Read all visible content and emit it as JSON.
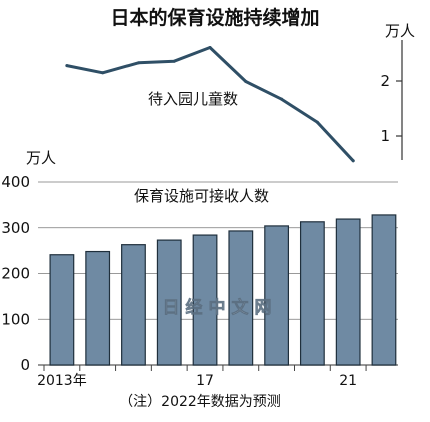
{
  "watermark": "日经中文网",
  "chart_data": [
    {
      "type": "line",
      "title": "日本的保育设施持续增加",
      "label": "待入园儿童数",
      "unit": "万人",
      "ylim": [
        0.6,
        2.6
      ],
      "yticks": [
        1,
        2
      ],
      "color": "#2f4f66",
      "x": [
        2013,
        2014,
        2015,
        2016,
        2017,
        2018,
        2019,
        2020,
        2021
      ],
      "values": [
        2.28,
        2.15,
        2.33,
        2.36,
        2.61,
        1.99,
        1.67,
        1.25,
        0.55
      ]
    },
    {
      "type": "bar",
      "label": "保育设施可接收人数",
      "unit": "万人",
      "ylim": [
        0,
        400
      ],
      "yticks": [
        0,
        100,
        200,
        300,
        400
      ],
      "bar_color": "#6f8aa3",
      "x": [
        2013,
        2014,
        2015,
        2016,
        2017,
        2018,
        2019,
        2020,
        2021,
        2022
      ],
      "xtick_labels": [
        {
          "x": 2013,
          "text": "2013年"
        },
        {
          "x": 2017,
          "text": "17"
        },
        {
          "x": 2021,
          "text": "21"
        }
      ],
      "values": [
        241,
        248,
        263,
        273,
        284,
        293,
        304,
        313,
        319,
        328
      ],
      "note": "（注）2022年数据为预测"
    }
  ]
}
